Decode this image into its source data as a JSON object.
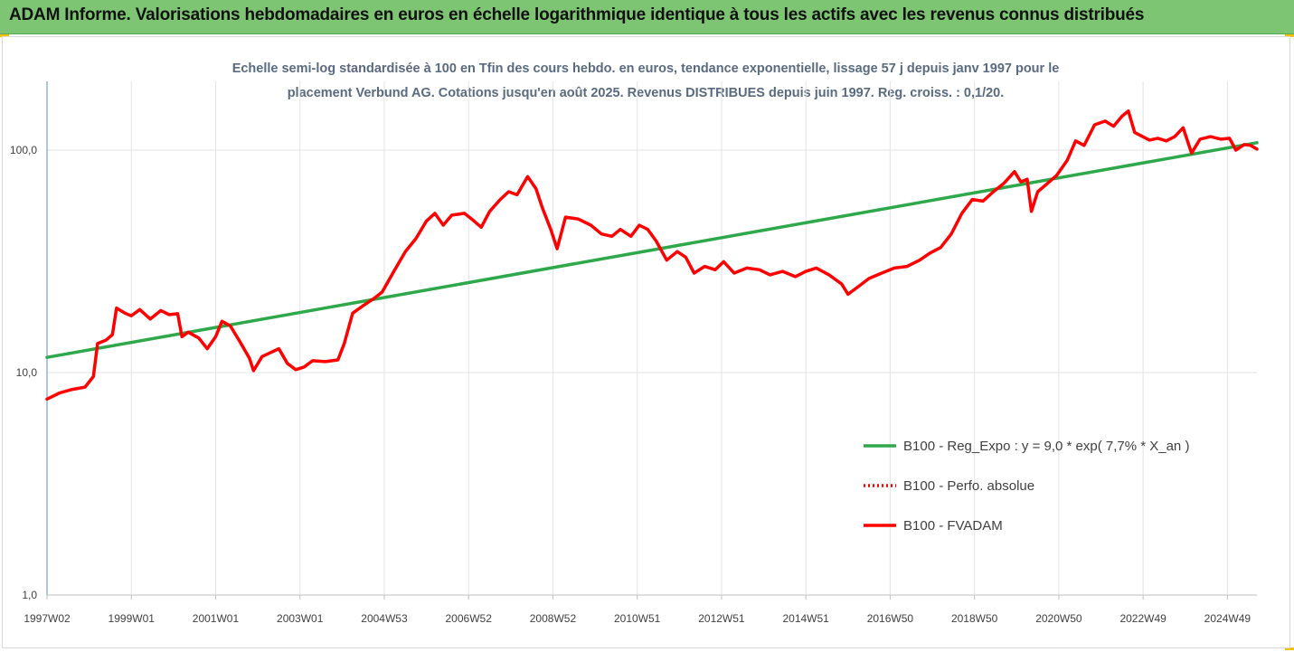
{
  "banner": {
    "title": "ADAM Informe. Valorisations hebdomadaires en euros en échelle logarithmique identique à tous les actifs avec les revenus connus distribués"
  },
  "colors": {
    "banner_bg": "#7dc572",
    "trend": "#2ea84a",
    "fvadam": "#ff0000",
    "perfo": "#ff0000",
    "grid": "#e3e3e3",
    "axis": "#5b8fc7"
  },
  "chart_data": {
    "type": "line",
    "title_lines": [
      "Echelle semi-log standardisée à 100 en Tfin des cours hebdo. en euros, tendance exponentielle, lissage 57 j depuis janv 1997 pour le",
      "placement Verbund AG. Cotations jusqu'en août 2025. Revenus DISTRIBUES depuis juin 1997. Reg. croiss. : 0,1/20."
    ],
    "y_scale": "log",
    "ylim": [
      1,
      200
    ],
    "y_ticks": [
      {
        "value": 1,
        "label": "1,0"
      },
      {
        "value": 10,
        "label": "10,0"
      },
      {
        "value": 100,
        "label": "100,0"
      }
    ],
    "xlim": [
      1997.0,
      2025.7
    ],
    "x_ticks": [
      {
        "value": 1997.0,
        "label": "1997W02"
      },
      {
        "value": 1999.0,
        "label": "1999W01"
      },
      {
        "value": 2001.0,
        "label": "2001W01"
      },
      {
        "value": 2003.0,
        "label": "2003W01"
      },
      {
        "value": 2005.0,
        "label": "2004W53"
      },
      {
        "value": 2007.0,
        "label": "2006W52"
      },
      {
        "value": 2009.0,
        "label": "2008W52"
      },
      {
        "value": 2011.0,
        "label": "2010W51"
      },
      {
        "value": 2013.0,
        "label": "2012W51"
      },
      {
        "value": 2015.0,
        "label": "2014W51"
      },
      {
        "value": 2017.0,
        "label": "2016W50"
      },
      {
        "value": 2019.0,
        "label": "2018W50"
      },
      {
        "value": 2021.0,
        "label": "2020W50"
      },
      {
        "value": 2023.0,
        "label": "2022W49"
      },
      {
        "value": 2025.0,
        "label": "2024W49"
      }
    ],
    "grid": true,
    "legend_position": "right",
    "series": [
      {
        "name": "B100 - Reg_Expo : y = 9,0 * exp( 7,7% *  X_an )",
        "style": "solid",
        "color": "#2ea84a",
        "points": [
          [
            1997.0,
            11.7
          ],
          [
            2025.7,
            108.0
          ]
        ]
      },
      {
        "name": "B100 - Perfo. absolue",
        "style": "dotted",
        "color": "#ff0000",
        "points": []
      },
      {
        "name": "B100 - FVADAM",
        "style": "solid",
        "color": "#ff0000",
        "points": [
          [
            1997.0,
            7.6
          ],
          [
            1997.3,
            8.1
          ],
          [
            1997.6,
            8.4
          ],
          [
            1997.9,
            8.6
          ],
          [
            1998.1,
            9.6
          ],
          [
            1998.2,
            13.5
          ],
          [
            1998.4,
            14.0
          ],
          [
            1998.55,
            14.8
          ],
          [
            1998.65,
            19.5
          ],
          [
            1998.85,
            18.5
          ],
          [
            1999.0,
            18.0
          ],
          [
            1999.2,
            19.2
          ],
          [
            1999.45,
            17.4
          ],
          [
            1999.7,
            19.0
          ],
          [
            1999.9,
            18.2
          ],
          [
            2000.1,
            18.4
          ],
          [
            2000.2,
            14.5
          ],
          [
            2000.35,
            15.2
          ],
          [
            2000.6,
            14.3
          ],
          [
            2000.8,
            12.8
          ],
          [
            2001.0,
            14.5
          ],
          [
            2001.15,
            17.0
          ],
          [
            2001.35,
            16.2
          ],
          [
            2001.6,
            13.5
          ],
          [
            2001.8,
            11.6
          ],
          [
            2001.9,
            10.2
          ],
          [
            2002.1,
            11.8
          ],
          [
            2002.3,
            12.3
          ],
          [
            2002.5,
            12.8
          ],
          [
            2002.7,
            11.0
          ],
          [
            2002.9,
            10.3
          ],
          [
            2003.1,
            10.6
          ],
          [
            2003.3,
            11.3
          ],
          [
            2003.6,
            11.2
          ],
          [
            2003.9,
            11.4
          ],
          [
            2004.05,
            13.5
          ],
          [
            2004.25,
            18.5
          ],
          [
            2004.5,
            20.0
          ],
          [
            2004.75,
            21.5
          ],
          [
            2004.95,
            23.0
          ],
          [
            2005.25,
            29.0
          ],
          [
            2005.5,
            35.0
          ],
          [
            2005.75,
            40.0
          ],
          [
            2006.0,
            48.0
          ],
          [
            2006.2,
            52.0
          ],
          [
            2006.4,
            46.0
          ],
          [
            2006.6,
            51.0
          ],
          [
            2006.9,
            52.0
          ],
          [
            2007.1,
            48.5
          ],
          [
            2007.3,
            45.0
          ],
          [
            2007.5,
            53.0
          ],
          [
            2007.75,
            60.0
          ],
          [
            2007.95,
            65.0
          ],
          [
            2008.15,
            63.0
          ],
          [
            2008.4,
            76.0
          ],
          [
            2008.6,
            67.0
          ],
          [
            2008.75,
            55.0
          ],
          [
            2008.95,
            44.0
          ],
          [
            2009.1,
            36.0
          ],
          [
            2009.3,
            50.0
          ],
          [
            2009.6,
            49.0
          ],
          [
            2009.9,
            46.0
          ],
          [
            2010.15,
            42.0
          ],
          [
            2010.4,
            41.0
          ],
          [
            2010.6,
            44.0
          ],
          [
            2010.85,
            41.0
          ],
          [
            2011.05,
            46.0
          ],
          [
            2011.25,
            44.0
          ],
          [
            2011.45,
            39.0
          ],
          [
            2011.7,
            32.0
          ],
          [
            2011.95,
            35.0
          ],
          [
            2012.15,
            33.0
          ],
          [
            2012.35,
            28.0
          ],
          [
            2012.6,
            30.0
          ],
          [
            2012.85,
            29.0
          ],
          [
            2013.05,
            31.5
          ],
          [
            2013.3,
            28.0
          ],
          [
            2013.6,
            29.5
          ],
          [
            2013.9,
            29.0
          ],
          [
            2014.15,
            27.5
          ],
          [
            2014.45,
            28.5
          ],
          [
            2014.75,
            27.0
          ],
          [
            2015.0,
            28.5
          ],
          [
            2015.25,
            29.5
          ],
          [
            2015.55,
            27.5
          ],
          [
            2015.85,
            25.0
          ],
          [
            2016.0,
            22.5
          ],
          [
            2016.2,
            24.0
          ],
          [
            2016.5,
            26.5
          ],
          [
            2016.8,
            28.0
          ],
          [
            2017.1,
            29.5
          ],
          [
            2017.4,
            30.0
          ],
          [
            2017.7,
            32.0
          ],
          [
            2017.95,
            34.5
          ],
          [
            2018.2,
            36.5
          ],
          [
            2018.45,
            42.0
          ],
          [
            2018.7,
            52.0
          ],
          [
            2018.95,
            60.0
          ],
          [
            2019.2,
            59.0
          ],
          [
            2019.45,
            65.0
          ],
          [
            2019.7,
            71.0
          ],
          [
            2019.95,
            80.0
          ],
          [
            2020.1,
            72.0
          ],
          [
            2020.25,
            74.0
          ],
          [
            2020.35,
            53.0
          ],
          [
            2020.5,
            65.0
          ],
          [
            2020.7,
            70.0
          ],
          [
            2020.95,
            77.0
          ],
          [
            2021.2,
            90.0
          ],
          [
            2021.4,
            110.0
          ],
          [
            2021.6,
            105.0
          ],
          [
            2021.85,
            130.0
          ],
          [
            2022.1,
            135.0
          ],
          [
            2022.3,
            128.0
          ],
          [
            2022.5,
            142.0
          ],
          [
            2022.65,
            150.0
          ],
          [
            2022.8,
            120.0
          ],
          [
            2022.95,
            116.0
          ],
          [
            2023.15,
            111.0
          ],
          [
            2023.35,
            113.0
          ],
          [
            2023.55,
            110.0
          ],
          [
            2023.75,
            115.0
          ],
          [
            2023.95,
            126.0
          ],
          [
            2024.15,
            97.0
          ],
          [
            2024.35,
            112.0
          ],
          [
            2024.6,
            115.0
          ],
          [
            2024.85,
            112.0
          ],
          [
            2025.05,
            113.0
          ],
          [
            2025.2,
            100.0
          ],
          [
            2025.4,
            106.0
          ],
          [
            2025.55,
            105.0
          ],
          [
            2025.7,
            101.0
          ]
        ]
      }
    ]
  }
}
